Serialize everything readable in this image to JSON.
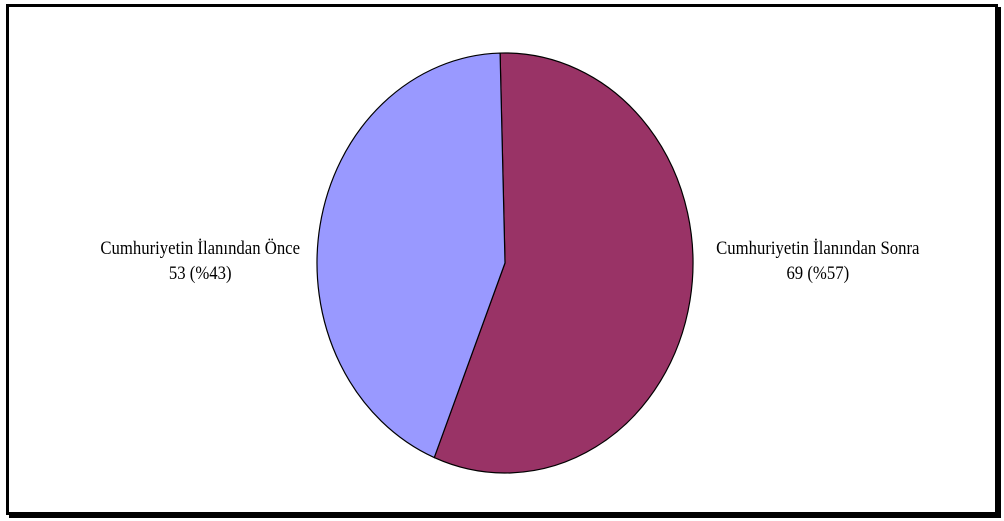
{
  "chart_data": {
    "type": "pie",
    "title": "",
    "slices": [
      {
        "label": "Cumhuriyetin İlanından Sonra",
        "value": 69,
        "percent_label": "69 (%57)",
        "color": "#993366"
      },
      {
        "label": "Cumhuriyetin İlanından Önce",
        "value": 53,
        "percent_label": "53 (%43)",
        "color": "#9999FF"
      }
    ],
    "start_angle_deg": -1.5,
    "direction": "clockwise",
    "legend": "none",
    "border_color": "#000000"
  }
}
